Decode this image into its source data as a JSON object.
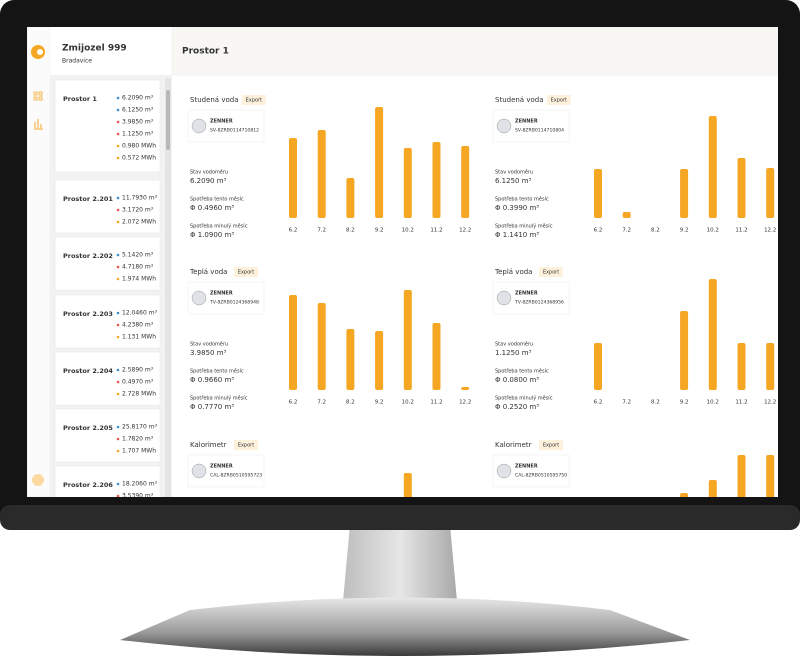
{
  "app": {
    "title": "Zmijozel 999",
    "subtitle": "Bradavice"
  },
  "header": {
    "title": "Prostor 1"
  },
  "sidebar": [
    {
      "name": "Prostor 1",
      "readings": [
        {
          "text": "6.2090 m³",
          "color": "#3a8fd0"
        },
        {
          "text": "6.1250 m³",
          "color": "#3a8fd0"
        },
        {
          "text": "3.9850 m³",
          "color": "#e8574c"
        },
        {
          "text": "1.1250 m³",
          "color": "#e8574c"
        },
        {
          "text": "0.980 MWh",
          "color": "#f5a623"
        },
        {
          "text": "0.572 MWh",
          "color": "#f5a623"
        }
      ]
    },
    {
      "name": "Prostor 2.201",
      "readings": [
        {
          "text": "11.7930 m³",
          "color": "#3a8fd0"
        },
        {
          "text": "3.1720 m³",
          "color": "#e8574c"
        },
        {
          "text": "2.072 MWh",
          "color": "#f5a623"
        }
      ]
    },
    {
      "name": "Prostor 2.202",
      "readings": [
        {
          "text": "5.1420 m³",
          "color": "#3a8fd0"
        },
        {
          "text": "4.7180 m³",
          "color": "#e8574c"
        },
        {
          "text": "1.974 MWh",
          "color": "#f5a623"
        }
      ]
    },
    {
      "name": "Prostor 2.203",
      "readings": [
        {
          "text": "12.0460 m³",
          "color": "#3a8fd0"
        },
        {
          "text": "4.2380 m³",
          "color": "#e8574c"
        },
        {
          "text": "1.131 MWh",
          "color": "#f5a623"
        }
      ]
    },
    {
      "name": "Prostor 2.204",
      "readings": [
        {
          "text": "2.5890 m³",
          "color": "#3a8fd0"
        },
        {
          "text": "0.4970 m³",
          "color": "#e8574c"
        },
        {
          "text": "2.728 MWh",
          "color": "#f5a623"
        }
      ]
    },
    {
      "name": "Prostor 2.205",
      "readings": [
        {
          "text": "25.8170 m³",
          "color": "#3a8fd0"
        },
        {
          "text": "1.7820 m³",
          "color": "#e8574c"
        },
        {
          "text": "1.707 MWh",
          "color": "#f5a623"
        }
      ]
    },
    {
      "name": "Prostor 2.206",
      "readings": [
        {
          "text": "18.2060 m³",
          "color": "#3a8fd0"
        },
        {
          "text": "3.5390 m³",
          "color": "#e8574c"
        }
      ]
    }
  ],
  "panels": [
    {
      "title": "Studená voda",
      "export": "Export",
      "brand": "ZENNER",
      "serial": "SV-8ZRB0114710812",
      "fields": [
        {
          "label": "Stav vodoměru",
          "value": "6.2090 m³"
        },
        {
          "label": "Spotřeba tento měsíc",
          "value": "Φ 0.4960 m³"
        },
        {
          "label": "Spotřeba minulý měsíc",
          "value": "Φ 1.0900 m³"
        }
      ],
      "chart": {
        "type": "bar",
        "color": "#f5a623",
        "categories": [
          "6.2",
          "7.2",
          "8.2",
          "9.2",
          "10.2",
          "11.2",
          "12.2"
        ],
        "values": [
          80,
          88,
          40,
          111,
          70,
          76,
          72
        ]
      }
    },
    {
      "title": "Studená voda",
      "export": "Export",
      "brand": "ZENNER",
      "serial": "SV-8ZRB0114710804",
      "fields": [
        {
          "label": "Stav vodoměru",
          "value": "6.1250 m³"
        },
        {
          "label": "Spotřeba tento měsíc",
          "value": "Φ 0.3990 m³"
        },
        {
          "label": "Spotřeba minulý měsíc",
          "value": "Φ 1.1410 m³"
        }
      ],
      "chart": {
        "type": "bar",
        "color": "#f5a623",
        "categories": [
          "6.2",
          "7.2",
          "8.2",
          "9.2",
          "10.2",
          "11.2",
          "12.2"
        ],
        "values": [
          49,
          6,
          0,
          49,
          102,
          60,
          50
        ]
      }
    },
    {
      "title": "Teplá voda",
      "export": "Export",
      "brand": "ZENNER",
      "serial": "TV-8ZRB0124368948",
      "fields": [
        {
          "label": "Stav vodoměru",
          "value": "3.9850 m³"
        },
        {
          "label": "Spotřeba tento měsíc",
          "value": "Φ 0.9660 m³"
        },
        {
          "label": "Spotřeba minulý měsíc",
          "value": "Φ 0.7770 m³"
        }
      ],
      "chart": {
        "type": "bar",
        "color": "#f5a623",
        "categories": [
          "6.2",
          "7.2",
          "8.2",
          "9.2",
          "10.2",
          "11.2",
          "12.2"
        ],
        "values": [
          95,
          87,
          61,
          59,
          100,
          67,
          3
        ]
      }
    },
    {
      "title": "Teplá voda",
      "export": "Export",
      "brand": "ZENNER",
      "serial": "TV-8ZRB0124368956",
      "fields": [
        {
          "label": "Stav vodoměru",
          "value": "1.1250 m³"
        },
        {
          "label": "Spotřeba tento měsíc",
          "value": "Φ 0.0800 m³"
        },
        {
          "label": "Spotřeba minulý měsíc",
          "value": "Φ 0.2520 m³"
        }
      ],
      "chart": {
        "type": "bar",
        "color": "#f5a623",
        "categories": [
          "6.2",
          "7.2",
          "8.2",
          "9.2",
          "10.2",
          "11.2",
          "12.2"
        ],
        "values": [
          47,
          0,
          0,
          79,
          111,
          47,
          47
        ]
      }
    },
    {
      "title": "Kalorimetr",
      "export": "Export",
      "brand": "ZENNER",
      "serial": "CAL-8ZRB0510595723",
      "chart": {
        "type": "bar",
        "color": "#f5a623",
        "values": [
          null,
          null,
          null,
          null,
          90,
          null,
          null
        ]
      }
    },
    {
      "title": "Kalorimetr",
      "export": "Export",
      "brand": "ZENNER",
      "serial": "CAL-8ZRB0510595750",
      "chart": {
        "type": "bar",
        "color": "#f5a623",
        "values": [
          null,
          null,
          null,
          70,
          83,
          108,
          108
        ]
      }
    }
  ]
}
